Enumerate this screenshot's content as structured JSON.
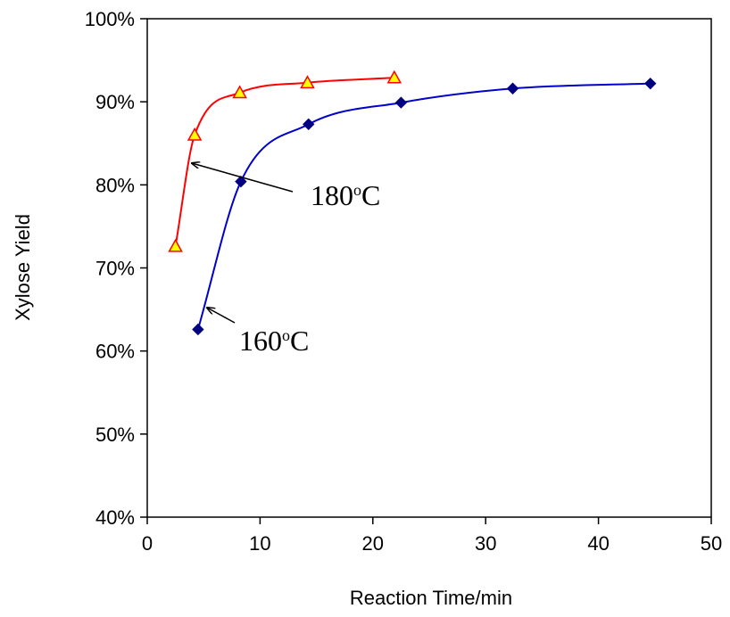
{
  "chart_data": {
    "type": "line",
    "xlabel": "Reaction Time/min",
    "ylabel": "Xylose Yield",
    "xlim": [
      0,
      50
    ],
    "ylim": [
      40,
      100
    ],
    "x_ticks": [
      "0",
      "10",
      "20",
      "30",
      "40",
      "50"
    ],
    "y_ticks": [
      "40%",
      "50%",
      "60%",
      "70%",
      "80%",
      "90%",
      "100%"
    ],
    "grid": false,
    "legend": "none",
    "series": [
      {
        "temperature": "180",
        "color": "#ff0000",
        "marker": "triangle",
        "marker_fill": "#ffff00",
        "marker_edge": "#ff0000",
        "x": [
          2.5,
          4.2,
          8.2,
          14.2,
          21.9
        ],
        "y": [
          72.6,
          86.0,
          91.1,
          92.3,
          92.9
        ]
      },
      {
        "temperature": "160",
        "color": "#0000cc",
        "marker": "diamond",
        "marker_fill": "#000080",
        "marker_edge": "#000080",
        "x": [
          4.5,
          8.3,
          14.3,
          22.5,
          32.4,
          44.6
        ],
        "y": [
          62.6,
          80.4,
          87.3,
          89.9,
          91.6,
          92.2
        ]
      }
    ],
    "annotations": [
      {
        "series_index": 0,
        "text": "180",
        "sup": "o",
        "unit": "C"
      },
      {
        "series_index": 1,
        "text": "160",
        "sup": "o",
        "unit": "C"
      }
    ]
  }
}
